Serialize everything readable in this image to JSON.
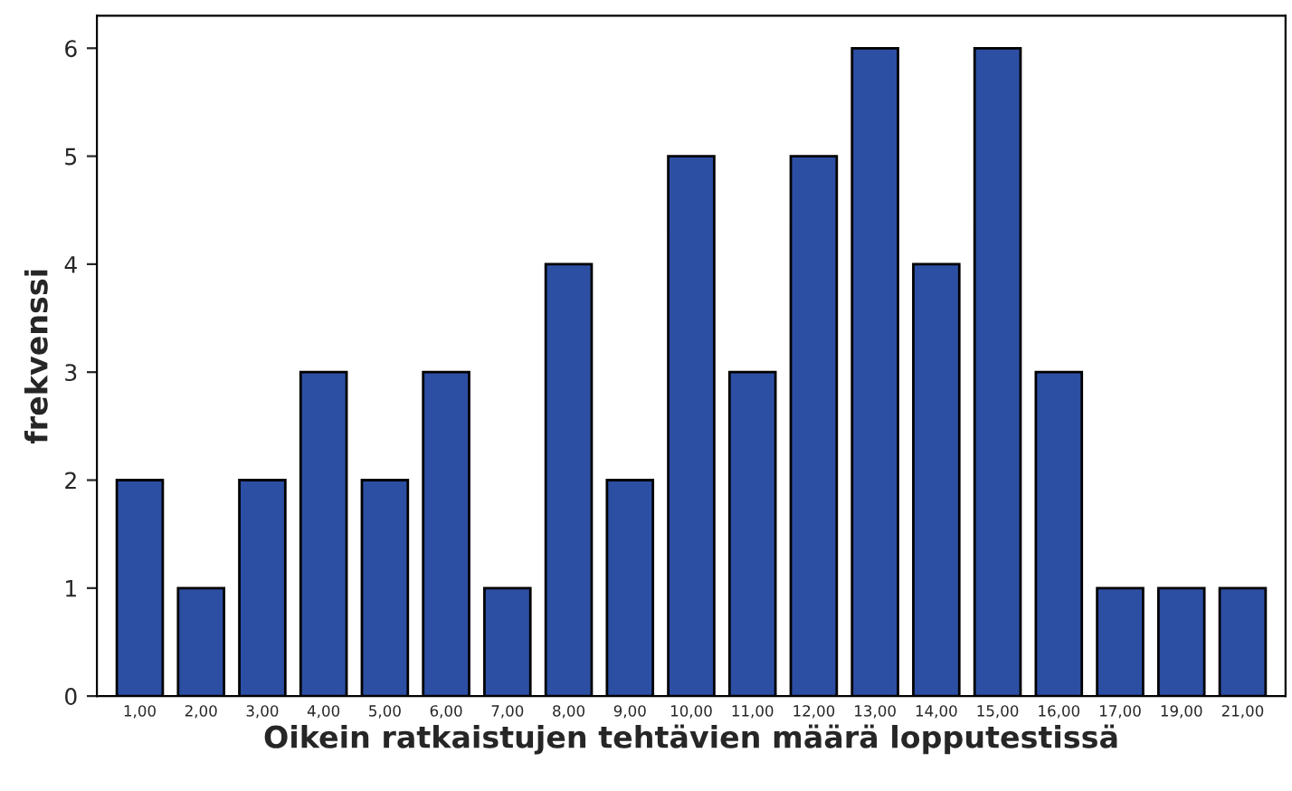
{
  "chart_data": {
    "type": "bar",
    "xlabel": "Oikein ratkaistujen tehtävien määrä lopputestissä",
    "ylabel": "frekvenssi",
    "categories": [
      "1,00",
      "2,00",
      "3,00",
      "4,00",
      "5,00",
      "6,00",
      "7,00",
      "8,00",
      "9,00",
      "10,00",
      "11,00",
      "12,00",
      "13,00",
      "14,00",
      "15,00",
      "16,00",
      "17,00",
      "19,00",
      "21,00"
    ],
    "values": [
      2,
      1,
      2,
      3,
      2,
      3,
      1,
      4,
      2,
      5,
      3,
      5,
      6,
      4,
      6,
      3,
      1,
      1,
      1
    ],
    "color": "#2c4fa3",
    "ylim": [
      0,
      6.3
    ],
    "yticks": [
      0,
      1,
      2,
      3,
      4,
      5,
      6
    ],
    "grid": false
  }
}
